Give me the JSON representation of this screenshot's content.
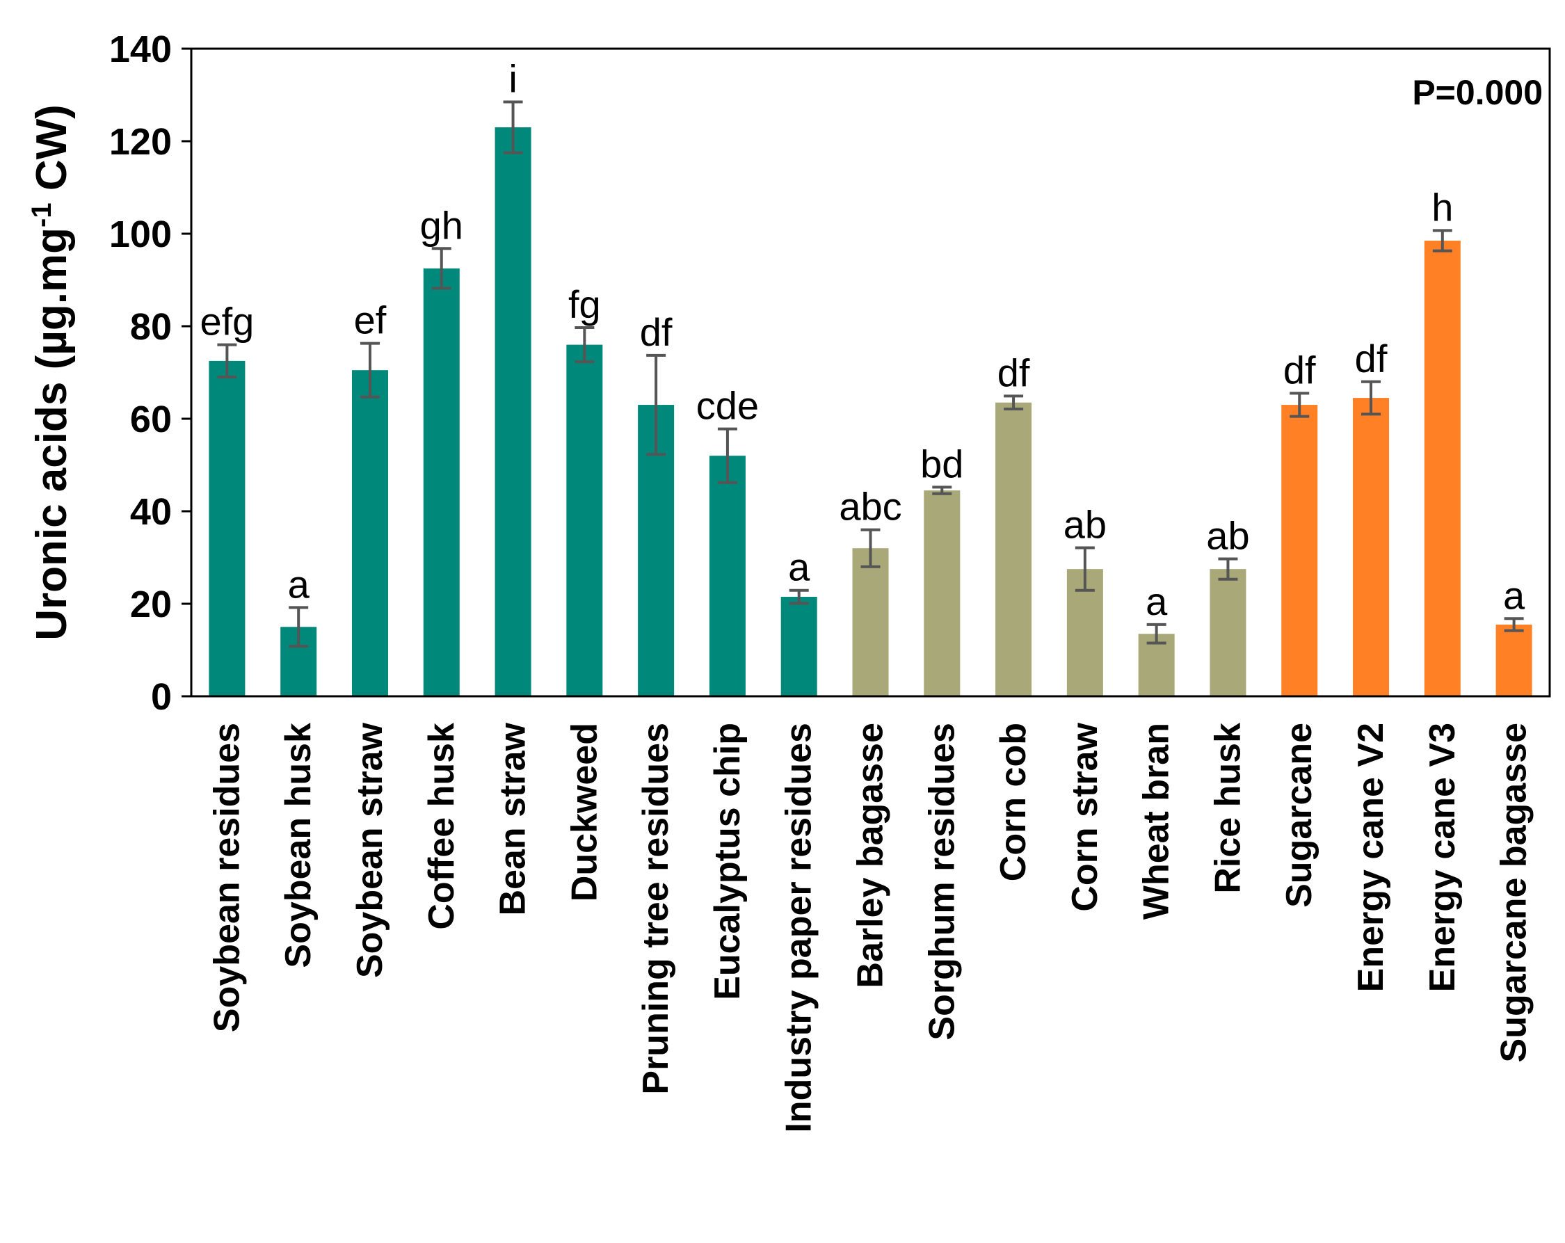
{
  "chart_data": {
    "type": "bar",
    "title": "",
    "xlabel": "",
    "ylabel": {
      "main": "Uronic acids (µg.mg",
      "superscript": "-1",
      "suffix": " CW)"
    },
    "ylim": [
      0,
      140
    ],
    "yticks": [
      0,
      20,
      40,
      60,
      80,
      100,
      120,
      140
    ],
    "grid": false,
    "legend": "none",
    "annotation": "P=0.000",
    "colors": {
      "teal": "#00897B",
      "olive": "#A8A878",
      "orange": "#FF8025",
      "error_bar": "#555555",
      "axis": "#000000"
    },
    "categories": [
      "Soybean residues",
      "Soybean husk",
      "Soybean straw",
      "Coffee husk",
      "Bean straw",
      "Duckweed",
      "Pruning tree residues",
      "Eucalyptus chip",
      "Industry paper residues",
      "Barley bagasse",
      "Sorghum residues",
      "Corn cob",
      "Corn straw",
      "Wheat bran",
      "Rice husk",
      "Sugarcane",
      "Energy cane V2",
      "Energy cane V3",
      "Sugarcane bagasse"
    ],
    "values": [
      72.5,
      15,
      70.5,
      92.5,
      123,
      76,
      63,
      52,
      21.5,
      32,
      44.5,
      63.5,
      27.5,
      13.5,
      27.5,
      63,
      64.5,
      98.5,
      15.5
    ],
    "errors": [
      3.5,
      4.2,
      5.8,
      4.3,
      5.5,
      3.7,
      10.7,
      5.8,
      1.4,
      4.0,
      0.7,
      1.4,
      4.6,
      2.0,
      2.2,
      2.5,
      3.5,
      2.2,
      1.3
    ],
    "significance": [
      "efg",
      "a",
      "ef",
      "gh",
      "i",
      "fg",
      "df",
      "cde",
      "a",
      "abc",
      "bd",
      "df",
      "ab",
      "a",
      "ab",
      "df",
      "df",
      "h",
      "a"
    ],
    "bar_colors": [
      "teal",
      "teal",
      "teal",
      "teal",
      "teal",
      "teal",
      "teal",
      "teal",
      "teal",
      "olive",
      "olive",
      "olive",
      "olive",
      "olive",
      "olive",
      "orange",
      "orange",
      "orange",
      "orange"
    ]
  }
}
